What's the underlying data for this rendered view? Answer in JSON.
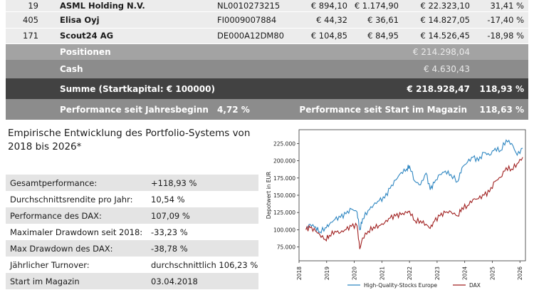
{
  "holdings": [
    {
      "qty": "19",
      "name": "ASML Holding N.V.",
      "isin": "NL0010273215",
      "price_buy": "€ 894,10",
      "price_now": "€ 1.174,90",
      "value": "€ 22.323,10",
      "perf": "31,41 %"
    },
    {
      "qty": "405",
      "name": "Elisa Oyj",
      "isin": "FI0009007884",
      "price_buy": "€ 44,32",
      "price_now": "€ 36,61",
      "value": "€ 14.827,05",
      "perf": "-17,40 %"
    },
    {
      "qty": "171",
      "name": "Scout24 AG",
      "isin": "DE000A12DM80",
      "price_buy": "€ 104,85",
      "price_now": "€ 84,95",
      "value": "€ 14.526,45",
      "perf": "-18,98 %"
    }
  ],
  "summary": {
    "positionen_label": "Positionen",
    "positionen_value": "€ 214.298,04",
    "cash_label": "Cash",
    "cash_value": "€ 4.630,43",
    "summe_label": "Summe (Startkapital: € 100000)",
    "summe_value": "€ 218.928,47",
    "summe_pct": "118,93 %",
    "ytd_label": "Performance seit Jahresbeginn",
    "ytd_value": "4,72 %",
    "start_label": "Performance seit Start im Magazin",
    "start_value": "118,63 %"
  },
  "left_title": "Empirische Entwicklung des Portfolio-Systems von 2018 bis 2026*",
  "stats": [
    {
      "k": "Gesamtperformance:",
      "v": "+118,93 %"
    },
    {
      "k": "Durchschnittsrendite pro Jahr:",
      "v": "10,54 %"
    },
    {
      "k": "Performance des DAX:",
      "v": "107,09 %"
    },
    {
      "k": "Maximaler Drawdown seit 2018:",
      "v": "-33,23 %"
    },
    {
      "k": "Max Drawdown des DAX:",
      "v": "-38,78 %"
    },
    {
      "k": "Jährlicher Turnover:",
      "v": "durchschnittlich 106,23 %"
    },
    {
      "k": "Start im Magazin",
      "v": "03.04.2018"
    }
  ],
  "chart_data": {
    "type": "line",
    "title": "",
    "xlabel": "",
    "ylabel": "Depotwert in EUR",
    "xlim": [
      2018,
      2026.2
    ],
    "ylim": [
      55000,
      245000
    ],
    "xticks": [
      "2018",
      "2019",
      "2020",
      "2021",
      "2022",
      "2023",
      "2024",
      "2025",
      "2026"
    ],
    "yticks": [
      "75.000",
      "100.000",
      "125.000",
      "150.000",
      "175.000",
      "200.000",
      "225.000"
    ],
    "legend_position": "bottom",
    "series": [
      {
        "name": "High-Quality-Stocks Europe",
        "color": "#2e86c1",
        "x": [
          2018.25,
          2018.4,
          2018.6,
          2018.75,
          2018.95,
          2019.1,
          2019.3,
          2019.5,
          2019.7,
          2019.9,
          2020.1,
          2020.2,
          2020.3,
          2020.5,
          2020.7,
          2020.9,
          2021.1,
          2021.3,
          2021.5,
          2021.7,
          2021.9,
          2022.0,
          2022.2,
          2022.4,
          2022.6,
          2022.75,
          2022.9,
          2023.1,
          2023.3,
          2023.5,
          2023.75,
          2023.9,
          2024.1,
          2024.3,
          2024.5,
          2024.7,
          2024.9,
          2025.1,
          2025.3,
          2025.5,
          2025.7,
          2025.9,
          2026.1
        ],
        "y": [
          101000,
          108000,
          104000,
          97000,
          103000,
          108000,
          115000,
          118000,
          123000,
          130000,
          126000,
          100000,
          116000,
          128000,
          136000,
          142000,
          146000,
          160000,
          172000,
          183000,
          188000,
          193000,
          170000,
          165000,
          182000,
          158000,
          168000,
          180000,
          185000,
          180000,
          170000,
          190000,
          198000,
          205000,
          200000,
          212000,
          208000,
          218000,
          215000,
          230000,
          225000,
          208000,
          218000
        ]
      },
      {
        "name": "DAX",
        "color": "#a02020",
        "x": [
          2018.25,
          2018.4,
          2018.6,
          2018.75,
          2018.95,
          2019.1,
          2019.3,
          2019.5,
          2019.7,
          2019.9,
          2020.1,
          2020.2,
          2020.3,
          2020.5,
          2020.7,
          2020.9,
          2021.1,
          2021.3,
          2021.5,
          2021.7,
          2021.9,
          2022.0,
          2022.2,
          2022.4,
          2022.6,
          2022.75,
          2022.9,
          2023.1,
          2023.3,
          2023.5,
          2023.75,
          2023.9,
          2024.1,
          2024.3,
          2024.5,
          2024.7,
          2024.9,
          2025.1,
          2025.3,
          2025.5,
          2025.7,
          2025.9,
          2026.1
        ],
        "y": [
          100000,
          103000,
          98000,
          93000,
          86000,
          92000,
          98000,
          96000,
          100000,
          105000,
          106000,
          72000,
          88000,
          98000,
          104000,
          106000,
          110000,
          117000,
          120000,
          122000,
          125000,
          127000,
          113000,
          113000,
          108000,
          102000,
          112000,
          120000,
          125000,
          126000,
          120000,
          132000,
          135000,
          144000,
          145000,
          150000,
          155000,
          170000,
          176000,
          190000,
          188000,
          196000,
          205000
        ]
      }
    ]
  }
}
